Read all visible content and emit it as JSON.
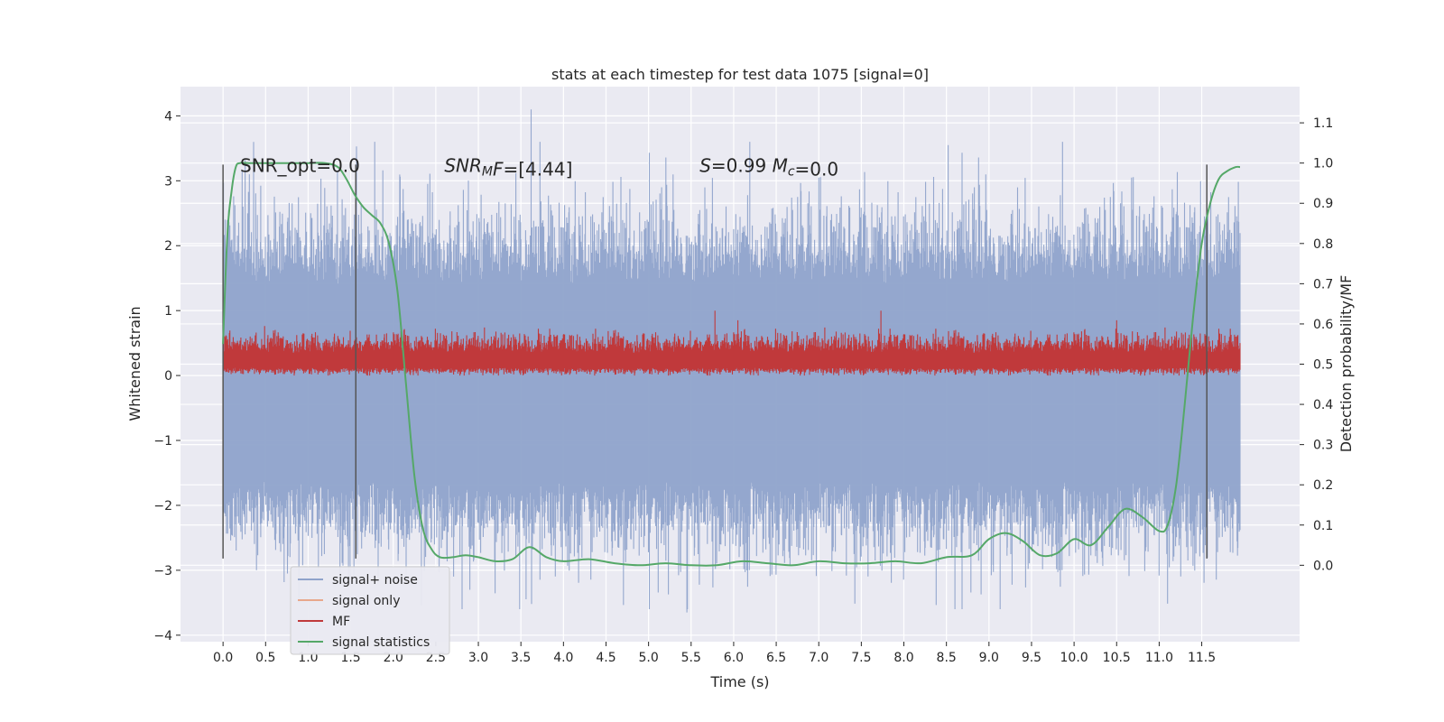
{
  "chart_data": {
    "type": "line",
    "title": "stats at each timestep for test data 1075 [signal=0]",
    "xlabel": "Time (s)",
    "ylabel": "Whitened strain",
    "y2label": "Detection probability/MF",
    "xlim": [
      -0.5,
      12.65
    ],
    "ylim": [
      -4.1,
      4.45
    ],
    "y2lim": [
      -0.19,
      1.19
    ],
    "xticks": [
      0.0,
      0.5,
      1.0,
      1.5,
      2.0,
      2.5,
      3.0,
      3.5,
      4.0,
      4.5,
      5.0,
      5.5,
      6.0,
      6.5,
      7.0,
      7.5,
      8.0,
      8.5,
      9.0,
      9.5,
      10.0,
      10.5,
      11.0,
      11.5
    ],
    "xtick_labels": [
      "0.0",
      "0.5",
      "1.0",
      "1.5",
      "2.0",
      "2.5",
      "3.0",
      "3.5",
      "4.0",
      "4.5",
      "5.0",
      "5.5",
      "6.0",
      "6.5",
      "7.0",
      "7.5",
      "8.0",
      "8.5",
      "9.0",
      "9.5",
      "10.0",
      "10.5",
      "11.0",
      "11.5"
    ],
    "yticks": [
      -4,
      -3,
      -2,
      -1,
      0,
      1,
      2,
      3,
      4
    ],
    "ytick_labels": [
      "−4",
      "−3",
      "−2",
      "−1",
      "0",
      "1",
      "2",
      "3",
      "4"
    ],
    "y2ticks": [
      0.0,
      0.1,
      0.2,
      0.3,
      0.4,
      0.5,
      0.6,
      0.7,
      0.8,
      0.9,
      1.0,
      1.1
    ],
    "y2tick_labels": [
      "0.0",
      "0.1",
      "0.2",
      "0.3",
      "0.4",
      "0.5",
      "0.6",
      "0.7",
      "0.8",
      "0.9",
      "1.0",
      "1.1"
    ],
    "grid": true,
    "legend": {
      "placement": "lower-left",
      "entries": [
        {
          "name": "signal+ noise",
          "color": "#8fa3cb"
        },
        {
          "name": "signal only",
          "color": "#e8a88c"
        },
        {
          "name": "MF",
          "color": "#c0393b"
        },
        {
          "name": "signal statistics",
          "color": "#55a868"
        }
      ]
    },
    "annotations": [
      {
        "text": "SNR_opt=0.0",
        "x": 0.2,
        "y": 3.25
      },
      {
        "text_parts": [
          {
            "t": "SNR",
            "i": true
          },
          {
            "t": "M",
            "i": true,
            "sub": true
          },
          {
            "t": "F",
            "i": true
          },
          {
            "t": "=[4.44]",
            "i": false
          }
        ],
        "x": 2.6,
        "y": 3.25
      },
      {
        "text_parts": [
          {
            "t": "S",
            "i": true
          },
          {
            "t": "=0.99   ",
            "i": false
          },
          {
            "t": "M",
            "i": true
          },
          {
            "t": "c",
            "i": true,
            "sub": true
          },
          {
            "t": "=0.0",
            "i": false
          }
        ],
        "x": 5.6,
        "y": 3.25
      }
    ],
    "vertical_lines": [
      {
        "x": 0.0,
        "ymin": -2.82,
        "ymax": 3.25
      },
      {
        "x": 1.56,
        "ymin": -2.82,
        "ymax": 3.25
      },
      {
        "x": 11.56,
        "ymin": -2.82,
        "ymax": 3.25
      }
    ],
    "series": [
      {
        "name": "signal+ noise",
        "color": "#8fa3cb",
        "x_range": [
          0.0,
          11.95
        ],
        "envelope": {
          "typical_upper": 1.4,
          "typical_lower": -1.6,
          "peak_upper": 3.6,
          "peak_lower": -3.6
        },
        "notable_peaks": [
          {
            "x": 3.62,
            "y": 4.1
          },
          {
            "x": 8.52,
            "y": 3.55
          },
          {
            "x": 5.45,
            "y": -3.65
          },
          {
            "x": 8.6,
            "y": -3.6
          },
          {
            "x": 2.9,
            "y": -3.3
          }
        ]
      },
      {
        "name": "MF",
        "color": "#c0393b",
        "x_range": [
          0.0,
          11.95
        ],
        "envelope": {
          "typical_upper": 0.6,
          "typical_lower": 0.05,
          "peak_upper": 1.0
        },
        "notable_peaks": [
          {
            "x": 5.78,
            "y": 1.0
          },
          {
            "x": 7.73,
            "y": 1.0
          },
          {
            "x": 6.05,
            "y": 0.85
          },
          {
            "x": 10.5,
            "y": 0.85
          }
        ]
      },
      {
        "name": "signal statistics",
        "color": "#55a868",
        "axis": "right",
        "x": [
          0.0,
          0.05,
          0.1,
          0.15,
          0.2,
          0.3,
          0.5,
          0.8,
          1.0,
          1.2,
          1.35,
          1.45,
          1.55,
          1.65,
          1.75,
          1.85,
          1.95,
          2.05,
          2.15,
          2.25,
          2.35,
          2.45,
          2.55,
          2.7,
          2.85,
          3.0,
          3.2,
          3.4,
          3.6,
          3.8,
          4.0,
          4.3,
          4.6,
          4.9,
          5.2,
          5.5,
          5.8,
          6.1,
          6.4,
          6.7,
          7.0,
          7.3,
          7.6,
          7.9,
          8.2,
          8.5,
          8.8,
          9.0,
          9.2,
          9.4,
          9.6,
          9.8,
          10.0,
          10.2,
          10.4,
          10.6,
          10.8,
          11.0,
          11.1,
          11.2,
          11.3,
          11.4,
          11.5,
          11.6,
          11.7,
          11.8,
          11.9,
          11.95
        ],
        "y": [
          0.55,
          0.82,
          0.93,
          0.99,
          1.0,
          1.0,
          1.0,
          1.0,
          1.0,
          1.0,
          0.99,
          0.96,
          0.92,
          0.89,
          0.87,
          0.85,
          0.8,
          0.68,
          0.45,
          0.22,
          0.09,
          0.04,
          0.02,
          0.02,
          0.025,
          0.02,
          0.01,
          0.015,
          0.045,
          0.02,
          0.01,
          0.015,
          0.005,
          0.0,
          0.005,
          0.0,
          0.0,
          0.01,
          0.005,
          0.0,
          0.01,
          0.005,
          0.005,
          0.01,
          0.005,
          0.02,
          0.025,
          0.065,
          0.08,
          0.06,
          0.025,
          0.03,
          0.065,
          0.05,
          0.095,
          0.14,
          0.12,
          0.085,
          0.1,
          0.2,
          0.4,
          0.62,
          0.8,
          0.9,
          0.96,
          0.98,
          0.99,
          0.99
        ]
      }
    ]
  }
}
